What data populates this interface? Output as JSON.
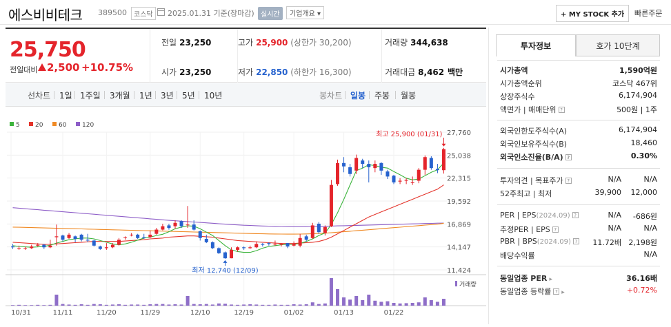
{
  "header": {
    "stock_name": "에스비비테크",
    "stock_code": "389500",
    "market": "코스닥",
    "date_text": "2025.01.31  기준(장마감)",
    "realtime_label": "실시간",
    "company_overview": "기업개요 ▾",
    "mystock_label": "+ MY STOCK 추가",
    "fast_order": "빠른주문"
  },
  "summary": {
    "price": "25,750",
    "change_label": "전일대비",
    "change_value": "2,500",
    "change_pct": "+10.75%",
    "prev_close_label": "전일",
    "prev_close": "23,250",
    "high_label": "고가",
    "high": "25,900",
    "upper_limit": "(상한가 30,200)",
    "volume_label": "거래량",
    "volume": "344,638",
    "open_label": "시가",
    "open": "23,250",
    "low_label": "저가",
    "low": "22,850",
    "lower_limit": "(하한가 16,300)",
    "amount_label": "거래대금",
    "amount": "8,462",
    "amount_unit": "백만"
  },
  "tabs": {
    "line_chart": "선차트",
    "periods": [
      "1일",
      "1주일",
      "3개월",
      "1년",
      "3년",
      "5년",
      "10년"
    ],
    "candle_chart": "봉차트",
    "candles": [
      "일봉",
      "주봉",
      "월봉"
    ],
    "active_candle": "일봉"
  },
  "chart_data": {
    "type": "candlestick",
    "legend": [
      {
        "name": "5",
        "color": "#3cb43c"
      },
      {
        "name": "20",
        "color": "#e4342b"
      },
      {
        "name": "60",
        "color": "#f08a24"
      },
      {
        "name": "120",
        "color": "#8e5ec8"
      }
    ],
    "y_ticks": [
      "27,760",
      "25,038",
      "22,315",
      "19,592",
      "16,869",
      "14,147",
      "11,424"
    ],
    "ylim": [
      11424,
      27760
    ],
    "x_ticks": [
      "10/31",
      "11/11",
      "11/20",
      "11/29",
      "12/10",
      "12/19",
      "01/02",
      "01/13",
      "01/22"
    ],
    "high_annotation": "최고 25,900 (01/31)",
    "low_annotation": "최저 12,740 (12/09)",
    "volume_label": "거래량",
    "candles": [
      [
        14200,
        14100,
        14500,
        13900
      ],
      [
        14000,
        14000,
        14300,
        13800
      ],
      [
        14000,
        14000,
        14200,
        13800
      ],
      [
        14000,
        14200,
        14400,
        13900
      ],
      [
        14300,
        14400,
        14600,
        14200
      ],
      [
        14400,
        14100,
        14500,
        13900
      ],
      [
        14100,
        14300,
        15000,
        14000
      ],
      [
        15300,
        15400,
        16800,
        14300
      ],
      [
        15500,
        15000,
        15600,
        14800
      ],
      [
        15200,
        15600,
        15800,
        15100
      ],
      [
        15400,
        15100,
        15500,
        14700
      ],
      [
        15600,
        15000,
        15700,
        14800
      ],
      [
        15000,
        14900,
        15700,
        14700
      ],
      [
        14900,
        14300,
        15000,
        14200
      ],
      [
        14200,
        13900,
        14300,
        13800
      ],
      [
        14000,
        14100,
        14600,
        13800
      ],
      [
        14100,
        14400,
        14600,
        14000
      ],
      [
        14400,
        15000,
        15200,
        14300
      ],
      [
        15300,
        15300,
        15400,
        15000
      ],
      [
        15600,
        15600,
        15800,
        15400
      ],
      [
        15600,
        15200,
        15700,
        15100
      ],
      [
        15300,
        15200,
        15700,
        15100
      ],
      [
        15300,
        15600,
        16100,
        15200
      ],
      [
        15700,
        16200,
        16400,
        15600
      ],
      [
        16200,
        16600,
        16900,
        16100
      ],
      [
        16700,
        16400,
        16900,
        16200
      ],
      [
        16600,
        17000,
        17300,
        16300
      ],
      [
        17200,
        16600,
        17300,
        16400
      ],
      [
        16800,
        16800,
        19000,
        16400
      ],
      [
        16800,
        16200,
        17300,
        16100
      ],
      [
        16000,
        15200,
        16100,
        14900
      ],
      [
        15100,
        14700,
        15600,
        14600
      ],
      [
        14700,
        14000,
        14800,
        13900
      ],
      [
        14000,
        13400,
        14100,
        13300
      ],
      [
        13500,
        12800,
        13600,
        12740
      ],
      [
        12800,
        13800,
        14100,
        12800
      ],
      [
        13800,
        14100,
        14200,
        13600
      ],
      [
        14100,
        14000,
        14200,
        13800
      ],
      [
        14000,
        14100,
        14300,
        13900
      ],
      [
        14100,
        14500,
        14800,
        14000
      ],
      [
        14500,
        14400,
        14600,
        14200
      ],
      [
        14600,
        14500,
        14700,
        14300
      ],
      [
        14500,
        14500,
        14900,
        14300
      ],
      [
        14400,
        14500,
        14600,
        14200
      ],
      [
        14600,
        14200,
        14600,
        14000
      ],
      [
        14300,
        14500,
        14800,
        14200
      ],
      [
        14300,
        15200,
        15700,
        14100
      ],
      [
        15400,
        15000,
        15600,
        14800
      ],
      [
        15200,
        16700,
        17000,
        15100
      ],
      [
        16900,
        15900,
        17100,
        15700
      ],
      [
        15800,
        16500,
        16700,
        15500
      ],
      [
        16600,
        21500,
        22100,
        16500
      ],
      [
        21600,
        24100,
        24500,
        21400
      ],
      [
        24100,
        23700,
        24800,
        23000
      ],
      [
        23600,
        22800,
        24000,
        22500
      ],
      [
        23200,
        24700,
        25100,
        22800
      ],
      [
        24400,
        24000,
        24600,
        23500
      ],
      [
        24000,
        23600,
        24400,
        21800
      ],
      [
        23500,
        24000,
        24400,
        23000
      ],
      [
        24100,
        23200,
        24200,
        22700
      ],
      [
        23100,
        22500,
        23300,
        22200
      ],
      [
        22600,
        21800,
        22700,
        21600
      ],
      [
        21900,
        22000,
        22300,
        21600
      ],
      [
        22000,
        22100,
        22300,
        21600
      ],
      [
        21800,
        21800,
        22500,
        21500
      ],
      [
        22000,
        23300,
        23500,
        21700
      ],
      [
        23300,
        24800,
        25000,
        22700
      ],
      [
        24700,
        23500,
        24900,
        23300
      ],
      [
        23400,
        23250,
        24000,
        22900
      ],
      [
        23250,
        25750,
        25900,
        22850
      ]
    ],
    "ma5": [
      14300,
      14200,
      14150,
      14100,
      14150,
      14200,
      14350,
      14600,
      14800,
      15000,
      15100,
      15200,
      15200,
      15100,
      14900,
      14700,
      14500,
      14400,
      14500,
      14700,
      14950,
      15200,
      15300,
      15500,
      15650,
      15950,
      16300,
      16500,
      16650,
      16600,
      16300,
      15900,
      15500,
      14900,
      14300,
      13800,
      13600,
      13500,
      13500,
      13700,
      14000,
      14200,
      14300,
      14400,
      14450,
      14450,
      14550,
      14800,
      15100,
      15500,
      15800,
      16800,
      18200,
      19800,
      21500,
      23200,
      23500,
      23900,
      23800,
      23600,
      23500,
      23100,
      22700,
      22300,
      22100,
      22200,
      22600,
      23000,
      23300,
      24100
    ],
    "ma20": [
      14700,
      14650,
      14600,
      14550,
      14500,
      14450,
      14450,
      14500,
      14550,
      14600,
      14650,
      14700,
      14750,
      14800,
      14800,
      14800,
      14800,
      14800,
      14850,
      14900,
      14950,
      15000,
      15100,
      15150,
      15200,
      15300,
      15350,
      15400,
      15450,
      15450,
      15400,
      15350,
      15300,
      15200,
      15100,
      15000,
      14900,
      14850,
      14800,
      14750,
      14700,
      14650,
      14600,
      14550,
      14550,
      14550,
      14600,
      14650,
      14700,
      14800,
      15000,
      15300,
      15700,
      16100,
      16500,
      16900,
      17300,
      17700,
      18000,
      18300,
      18600,
      18900,
      19200,
      19500,
      19800,
      20100,
      20400,
      20700,
      21000,
      21500
    ],
    "ma60": [
      16500,
      16480,
      16460,
      16440,
      16420,
      16400,
      16380,
      16360,
      16340,
      16320,
      16300,
      16280,
      16260,
      16240,
      16220,
      16200,
      16180,
      16160,
      16140,
      16120,
      16100,
      16080,
      16060,
      16040,
      16020,
      16000,
      15980,
      15960,
      15940,
      15920,
      15900,
      15880,
      15860,
      15840,
      15820,
      15800,
      15780,
      15760,
      15740,
      15720,
      15700,
      15690,
      15680,
      15670,
      15660,
      15660,
      15670,
      15690,
      15710,
      15740,
      15780,
      15830,
      15890,
      15950,
      16010,
      16070,
      16130,
      16190,
      16250,
      16310,
      16370,
      16430,
      16490,
      16550,
      16610,
      16670,
      16730,
      16790,
      16850,
      16950
    ],
    "ma120": [
      18800,
      18740,
      18680,
      18620,
      18560,
      18500,
      18440,
      18380,
      18320,
      18260,
      18200,
      18140,
      18080,
      18020,
      17960,
      17900,
      17840,
      17780,
      17720,
      17660,
      17600,
      17540,
      17480,
      17420,
      17360,
      17300,
      17250,
      17200,
      17150,
      17100,
      17050,
      17000,
      16950,
      16900,
      16850,
      16800,
      16760,
      16720,
      16690,
      16660,
      16630,
      16610,
      16590,
      16570,
      16560,
      16550,
      16550,
      16560,
      16570,
      16580,
      16600,
      16620,
      16640,
      16660,
      16680,
      16700,
      16720,
      16740,
      16760,
      16780,
      16800,
      16820,
      16840,
      16860,
      16880,
      16900,
      16920,
      16940,
      16960,
      16980
    ],
    "volumes": [
      2,
      3,
      2,
      2,
      3,
      2,
      3,
      40,
      6,
      4,
      3,
      5,
      3,
      6,
      5,
      3,
      4,
      5,
      3,
      4,
      4,
      3,
      5,
      6,
      6,
      4,
      5,
      4,
      35,
      6,
      5,
      6,
      4,
      8,
      7,
      4,
      3,
      4,
      5,
      4,
      3,
      3,
      4,
      3,
      3,
      5,
      4,
      5,
      12,
      6,
      8,
      100,
      60,
      30,
      22,
      35,
      20,
      40,
      18,
      14,
      16,
      10,
      8,
      9,
      10,
      12,
      30,
      20,
      14,
      25
    ]
  },
  "right_panel": {
    "tab_active": "투자정보",
    "tab_inactive": "호가 10단계",
    "rows1": [
      {
        "label": "시가총액",
        "value": "1,590억원",
        "bold": true
      },
      {
        "label": "시가총액순위",
        "value": "코스닥 467위"
      },
      {
        "label": "상장주식수",
        "value": "6,174,904"
      },
      {
        "label": "액면가 | 매매단위",
        "value": "500원 | 1주"
      }
    ],
    "rows2": [
      {
        "label": "외국인한도주식수(A)",
        "value": "6,174,904"
      },
      {
        "label": "외국인보유주식수(B)",
        "value": "18,460"
      },
      {
        "label": "외국인소진율(B/A)",
        "value": "0.30%",
        "bold": true
      }
    ],
    "rows3": [
      {
        "label": "투자의견 | 목표주가",
        "mid": "N/A",
        "value": "N/A"
      },
      {
        "label": "52주최고 | 최저",
        "mid": "39,900",
        "value": "12,000"
      }
    ],
    "rows4": [
      {
        "label": "PER | EPS",
        "note": "(2024.09)",
        "mid": "N/A",
        "value": "-686원"
      },
      {
        "label": "추정PER | EPS",
        "note": "",
        "mid": "N/A",
        "value": "N/A"
      },
      {
        "label": "PBR | BPS",
        "note": "(2024.09)",
        "mid": "11.72배",
        "value": "2,198원"
      },
      {
        "label": "배당수익률",
        "note": "",
        "mid": "",
        "value": "N/A"
      }
    ],
    "rows5": [
      {
        "label": "동일업종 PER",
        "value": "36.16배"
      },
      {
        "label": "동일업종 등락률",
        "value": "+0.72%"
      }
    ]
  }
}
